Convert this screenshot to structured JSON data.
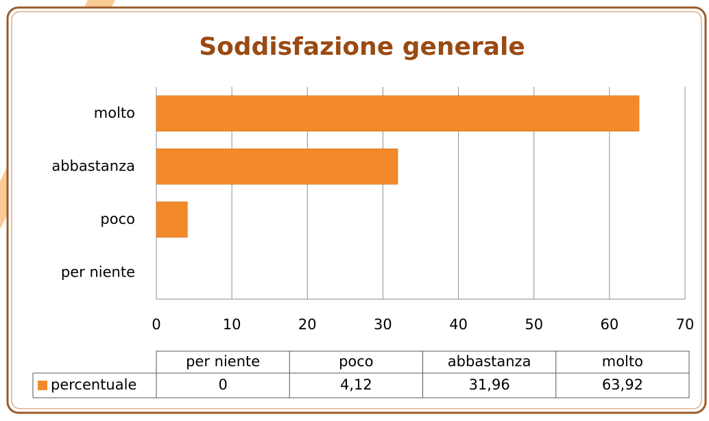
{
  "chart_data": {
    "type": "bar",
    "orientation": "horizontal",
    "title": "Soddisfazione generale",
    "categories": [
      "per niente",
      "poco",
      "abbastanza",
      "molto"
    ],
    "series": [
      {
        "name": "percentuale",
        "color": "#f28a2a",
        "values": [
          0,
          4.12,
          31.96,
          63.92
        ],
        "value_labels": [
          "0",
          "4,12",
          "31,96",
          "63,92"
        ]
      }
    ],
    "xlim": [
      0,
      70
    ],
    "xticks": [
      0,
      10,
      20,
      30,
      40,
      50,
      60,
      70
    ],
    "grid": true,
    "data_table": true
  }
}
